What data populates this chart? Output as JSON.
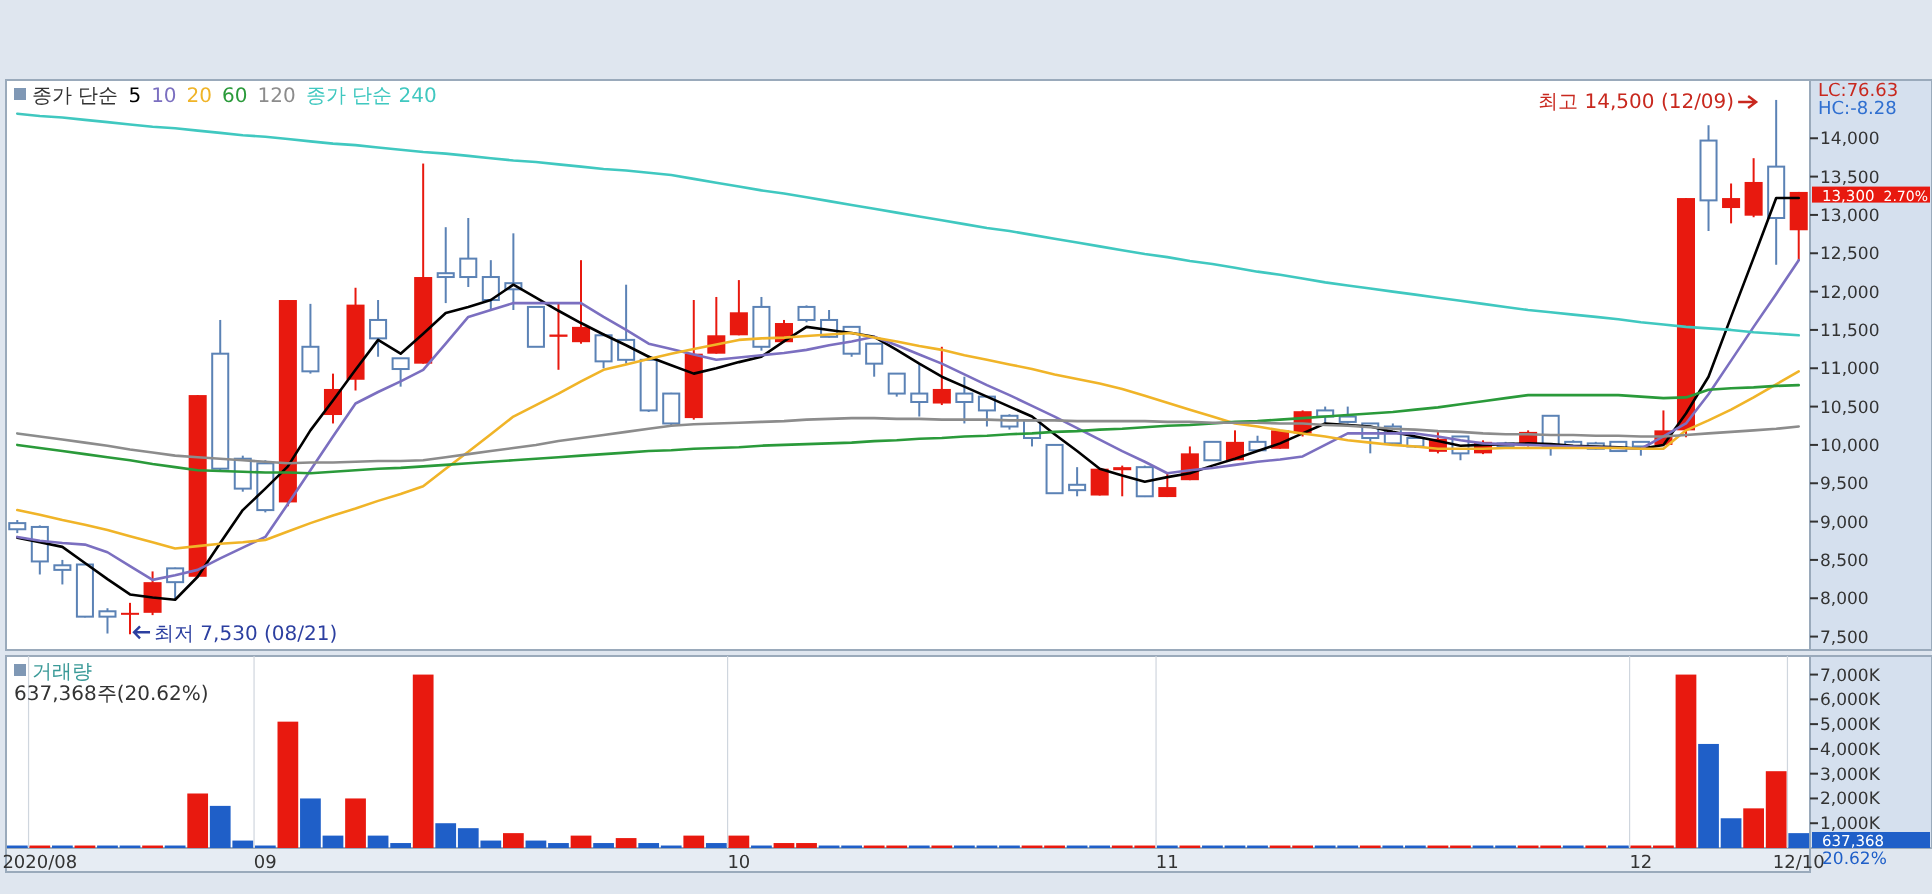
{
  "chart_data": [
    {
      "type": "candlestick",
      "tick_labels": "y",
      "legend": "top left",
      "legend_title": "종가 단순",
      "grid": false,
      "categories": [
        null,
        null,
        null,
        null,
        null,
        null,
        null,
        null,
        null,
        null,
        null,
        null,
        null,
        null,
        null,
        null,
        null,
        null,
        null,
        null,
        null,
        null,
        null,
        null,
        null,
        null,
        null,
        null,
        null,
        null,
        null,
        null,
        null,
        null,
        null,
        null,
        null,
        null,
        null,
        null,
        null,
        null,
        null,
        null,
        null,
        null,
        null,
        null,
        null,
        null,
        null,
        null,
        null,
        null,
        null,
        null,
        null,
        null,
        null,
        null,
        null,
        null,
        null,
        null,
        null,
        null,
        null,
        null,
        null,
        null,
        null,
        null,
        null,
        null,
        null,
        null,
        null,
        null,
        null,
        null
      ],
      "ohlc": [
        [
          8980,
          9020,
          8850,
          8900
        ],
        [
          8930,
          8950,
          8310,
          8480
        ],
        [
          8430,
          8500,
          8180,
          8370
        ],
        [
          8440,
          8450,
          7750,
          7760
        ],
        [
          7830,
          7870,
          7540,
          7760
        ],
        [
          7790,
          7940,
          7530,
          7810
        ],
        [
          7810,
          8350,
          7780,
          8210
        ],
        [
          8390,
          8400,
          7980,
          8210
        ],
        [
          8280,
          10650,
          8270,
          10650
        ],
        [
          11190,
          11630,
          9670,
          9690
        ],
        [
          9820,
          9860,
          9390,
          9430
        ],
        [
          9760,
          9800,
          9120,
          9150
        ],
        [
          9250,
          11890,
          9200,
          11890
        ],
        [
          11280,
          11840,
          10930,
          10960
        ],
        [
          10390,
          10930,
          10280,
          10730
        ],
        [
          10850,
          12050,
          10710,
          11830
        ],
        [
          11630,
          11890,
          11150,
          11390
        ],
        [
          11130,
          11130,
          10760,
          10990
        ],
        [
          11060,
          13670,
          11060,
          12190
        ],
        [
          12240,
          12840,
          11850,
          12190
        ],
        [
          12430,
          12960,
          12060,
          12190
        ],
        [
          12190,
          12410,
          11760,
          11890
        ],
        [
          12110,
          12760,
          11760,
          12030
        ],
        [
          11800,
          11800,
          11280,
          11280
        ],
        [
          11410,
          11840,
          10980,
          11440
        ],
        [
          11340,
          12410,
          11320,
          11540
        ],
        [
          11430,
          11460,
          11000,
          11090
        ],
        [
          11370,
          12090,
          11060,
          11110
        ],
        [
          11110,
          11170,
          10430,
          10450
        ],
        [
          10670,
          10680,
          10240,
          10280
        ],
        [
          10350,
          11890,
          10330,
          11190
        ],
        [
          11190,
          11930,
          11190,
          11430
        ],
        [
          11430,
          12150,
          11430,
          11730
        ],
        [
          11800,
          11930,
          11230,
          11280
        ],
        [
          11340,
          11630,
          11340,
          11590
        ],
        [
          11800,
          11820,
          11600,
          11630
        ],
        [
          11630,
          11760,
          11400,
          11410
        ],
        [
          11540,
          11540,
          11150,
          11190
        ],
        [
          11320,
          11320,
          10890,
          11060
        ],
        [
          10930,
          10930,
          10630,
          10670
        ],
        [
          10670,
          11060,
          10370,
          10560
        ],
        [
          10540,
          11280,
          10520,
          10730
        ],
        [
          10670,
          10890,
          10280,
          10560
        ],
        [
          10630,
          10630,
          10240,
          10450
        ],
        [
          10380,
          10400,
          10200,
          10240
        ],
        [
          10320,
          10320,
          9980,
          10090
        ],
        [
          10000,
          10000,
          9370,
          9370
        ],
        [
          9480,
          9710,
          9330,
          9410
        ],
        [
          9340,
          9690,
          9340,
          9690
        ],
        [
          9670,
          9730,
          9330,
          9710
        ],
        [
          9710,
          9730,
          9320,
          9330
        ],
        [
          9320,
          9630,
          9320,
          9450
        ],
        [
          9540,
          9980,
          9540,
          9890
        ],
        [
          10040,
          10040,
          9800,
          9800
        ],
        [
          9800,
          10190,
          9800,
          10040
        ],
        [
          10040,
          10120,
          9930,
          9930
        ],
        [
          9950,
          10190,
          9950,
          10190
        ],
        [
          10150,
          10450,
          10110,
          10440
        ],
        [
          10450,
          10500,
          10280,
          10370
        ],
        [
          10370,
          10500,
          10280,
          10300
        ],
        [
          10280,
          10280,
          9890,
          10090
        ],
        [
          10240,
          10280,
          10000,
          10020
        ],
        [
          10090,
          10100,
          9960,
          9980
        ],
        [
          9910,
          10190,
          9890,
          10080
        ],
        [
          10110,
          10110,
          9800,
          9890
        ],
        [
          9890,
          10060,
          9880,
          10040
        ],
        [
          10020,
          10040,
          9960,
          9980
        ],
        [
          9990,
          10190,
          9980,
          10170
        ],
        [
          10380,
          10380,
          9860,
          9980
        ],
        [
          10040,
          10060,
          9960,
          9980
        ],
        [
          10020,
          10040,
          9940,
          9950
        ],
        [
          10040,
          10040,
          9910,
          9920
        ],
        [
          10040,
          10040,
          9860,
          9980
        ],
        [
          10000,
          10450,
          9990,
          10190
        ],
        [
          10190,
          13220,
          10100,
          13220
        ],
        [
          13970,
          14170,
          12790,
          13190
        ],
        [
          13090,
          13410,
          12890,
          13220
        ],
        [
          12990,
          13740,
          12970,
          13430
        ],
        [
          13630,
          14500,
          12350,
          12960
        ],
        [
          12800,
          13300,
          12400,
          13300
        ]
      ],
      "colors": [
        "#5b82b5",
        "#5b82b5",
        "#5b82b5",
        "#5b82b5",
        "#5b82b5",
        "#e8190f",
        "#e8190f",
        "#5b82b5",
        "#e8190f",
        "#5b82b5",
        "#5b82b5",
        "#5b82b5",
        "#e8190f",
        "#5b82b5",
        "#e8190f",
        "#e8190f",
        "#5b82b5",
        "#5b82b5",
        "#e8190f",
        "#5b82b5",
        "#5b82b5",
        "#5b82b5",
        "#5b82b5",
        "#5b82b5",
        "#e8190f",
        "#e8190f",
        "#5b82b5",
        "#5b82b5",
        "#5b82b5",
        "#5b82b5",
        "#e8190f",
        "#e8190f",
        "#e8190f",
        "#5b82b5",
        "#e8190f",
        "#5b82b5",
        "#5b82b5",
        "#5b82b5",
        "#5b82b5",
        "#5b82b5",
        "#5b82b5",
        "#e8190f",
        "#5b82b5",
        "#5b82b5",
        "#5b82b5",
        "#5b82b5",
        "#5b82b5",
        "#5b82b5",
        "#e8190f",
        "#e8190f",
        "#5b82b5",
        "#e8190f",
        "#e8190f",
        "#5b82b5",
        "#e8190f",
        "#5b82b5",
        "#e8190f",
        "#e8190f",
        "#5b82b5",
        "#5b82b5",
        "#5b82b5",
        "#5b82b5",
        "#5b82b5",
        "#e8190f",
        "#5b82b5",
        "#e8190f",
        "#5b82b5",
        "#e8190f",
        "#5b82b5",
        "#5b82b5",
        "#5b82b5",
        "#5b82b5",
        "#5b82b5",
        "#e8190f",
        "#e8190f",
        "#5b82b5",
        "#e8190f",
        "#e8190f",
        "#5b82b5",
        "#e8190f"
      ],
      "series": [
        {
          "name": "5",
          "type": "line",
          "color": "#000000",
          "values": [
            8790,
            8730,
            8670,
            8460,
            8250,
            8050,
            8010,
            7980,
            8280,
            8720,
            9150,
            9430,
            9720,
            10190,
            10580,
            10980,
            11370,
            11190,
            11450,
            11720,
            11800,
            11890,
            12090,
            11920,
            11750,
            11590,
            11440,
            11300,
            11150,
            11040,
            10930,
            11000,
            11080,
            11150,
            11350,
            11540,
            11500,
            11460,
            11410,
            11240,
            11060,
            10890,
            10760,
            10630,
            10500,
            10370,
            10140,
            9920,
            9690,
            9600,
            9520,
            9580,
            9630,
            9730,
            9820,
            9920,
            10020,
            10150,
            10280,
            10260,
            10240,
            10170,
            10110,
            10050,
            9990,
            10000,
            10010,
            10020,
            10010,
            9990,
            9980,
            9970,
            9950,
            10000,
            10410,
            10890,
            11670,
            12440,
            13220,
            13220
          ]
        },
        {
          "name": "10",
          "type": "line",
          "color": "#7b6fc0",
          "values": [
            8800,
            8750,
            8720,
            8700,
            8600,
            8420,
            8240,
            8300,
            8370,
            8520,
            8660,
            8800,
            9230,
            9670,
            10110,
            10540,
            10690,
            10830,
            10980,
            11320,
            11670,
            11760,
            11850,
            11850,
            11850,
            11850,
            11670,
            11500,
            11320,
            11250,
            11180,
            11110,
            11140,
            11170,
            11200,
            11240,
            11300,
            11350,
            11410,
            11300,
            11180,
            11060,
            10920,
            10780,
            10650,
            10510,
            10370,
            10220,
            10070,
            9920,
            9780,
            9630,
            9670,
            9700,
            9740,
            9780,
            9810,
            9850,
            10000,
            10150,
            10150,
            10150,
            10150,
            10110,
            10060,
            10020,
            10010,
            10000,
            9990,
            9980,
            9970,
            9960,
            9950,
            10110,
            10280,
            10660,
            11100,
            11540,
            11970,
            12410
          ]
        },
        {
          "name": "20",
          "type": "line",
          "color": "#f0b428",
          "values": [
            9150,
            9090,
            9020,
            8960,
            8890,
            8810,
            8730,
            8650,
            8680,
            8710,
            8730,
            8760,
            8870,
            8980,
            9080,
            9170,
            9270,
            9360,
            9460,
            9690,
            9910,
            10140,
            10370,
            10520,
            10670,
            10830,
            10980,
            11050,
            11120,
            11190,
            11250,
            11310,
            11370,
            11390,
            11400,
            11420,
            11440,
            11460,
            11400,
            11350,
            11290,
            11240,
            11170,
            11110,
            11050,
            10990,
            10920,
            10860,
            10800,
            10730,
            10640,
            10550,
            10460,
            10370,
            10280,
            10240,
            10190,
            10150,
            10110,
            10060,
            10030,
            10000,
            9980,
            9950,
            9950,
            9950,
            9960,
            9960,
            9960,
            9960,
            9960,
            9960,
            9950,
            9950,
            10190,
            10320,
            10460,
            10620,
            10790,
            10960
          ]
        },
        {
          "name": "60",
          "type": "line",
          "color": "#2a9a3a",
          "values": [
            10000,
            9960,
            9920,
            9880,
            9840,
            9800,
            9750,
            9710,
            9670,
            9660,
            9650,
            9640,
            9640,
            9630,
            9650,
            9670,
            9690,
            9700,
            9720,
            9740,
            9760,
            9780,
            9800,
            9820,
            9840,
            9860,
            9880,
            9900,
            9920,
            9930,
            9950,
            9960,
            9970,
            9990,
            10000,
            10010,
            10020,
            10030,
            10050,
            10060,
            10080,
            10090,
            10110,
            10120,
            10140,
            10150,
            10170,
            10180,
            10200,
            10210,
            10230,
            10250,
            10260,
            10280,
            10300,
            10310,
            10330,
            10350,
            10370,
            10390,
            10410,
            10430,
            10460,
            10490,
            10530,
            10570,
            10610,
            10650,
            10650,
            10650,
            10650,
            10650,
            10630,
            10610,
            10620,
            10720,
            10740,
            10750,
            10770,
            10780
          ]
        },
        {
          "name": "120",
          "type": "line",
          "color": "#8c8c8c",
          "values": [
            10150,
            10110,
            10070,
            10030,
            9990,
            9940,
            9900,
            9860,
            9840,
            9820,
            9800,
            9780,
            9760,
            9770,
            9770,
            9780,
            9790,
            9790,
            9800,
            9840,
            9880,
            9920,
            9960,
            10000,
            10050,
            10090,
            10130,
            10170,
            10210,
            10250,
            10270,
            10280,
            10290,
            10300,
            10310,
            10330,
            10340,
            10350,
            10350,
            10340,
            10340,
            10330,
            10330,
            10330,
            10320,
            10320,
            10320,
            10310,
            10310,
            10310,
            10310,
            10300,
            10300,
            10290,
            10290,
            10290,
            10280,
            10280,
            10260,
            10250,
            10230,
            10210,
            10200,
            10180,
            10170,
            10150,
            10140,
            10140,
            10130,
            10130,
            10120,
            10120,
            10110,
            10110,
            10130,
            10150,
            10170,
            10190,
            10210,
            10240
          ]
        },
        {
          "name": "종가 단순 240",
          "type": "line",
          "color": "#40c8c0",
          "values": [
            14320,
            14290,
            14270,
            14240,
            14210,
            14180,
            14150,
            14130,
            14100,
            14070,
            14040,
            14020,
            13990,
            13960,
            13930,
            13910,
            13880,
            13850,
            13820,
            13800,
            13770,
            13740,
            13710,
            13690,
            13660,
            13630,
            13600,
            13580,
            13550,
            13520,
            13470,
            13420,
            13370,
            13320,
            13280,
            13230,
            13180,
            13130,
            13080,
            13030,
            12980,
            12930,
            12880,
            12830,
            12790,
            12740,
            12690,
            12640,
            12590,
            12540,
            12490,
            12450,
            12400,
            12360,
            12310,
            12260,
            12220,
            12170,
            12120,
            12080,
            12040,
            12000,
            11960,
            11920,
            11880,
            11840,
            11800,
            11760,
            11730,
            11700,
            11670,
            11640,
            11600,
            11570,
            11540,
            11520,
            11500,
            11470,
            11450,
            11430
          ]
        }
      ],
      "ylim": [
        7325,
        14760
      ],
      "yticks": [
        {
          "value": 7500,
          "label": "7,500"
        },
        {
          "value": 8000,
          "label": "8,000"
        },
        {
          "value": 8500,
          "label": "8,500"
        },
        {
          "value": 9000,
          "label": "9,000"
        },
        {
          "value": 9500,
          "label": "9,500"
        },
        {
          "value": 10000,
          "label": "10,000"
        },
        {
          "value": 10500,
          "label": "10,500"
        },
        {
          "value": 11000,
          "label": "11,000"
        },
        {
          "value": 11500,
          "label": "11,500"
        },
        {
          "value": 12000,
          "label": "12,000"
        },
        {
          "value": 12500,
          "label": "12,500"
        },
        {
          "value": 13000,
          "label": "13,000"
        },
        {
          "value": 13500,
          "label": "13,500"
        },
        {
          "value": 14000,
          "label": "14,000"
        }
      ],
      "annotations": [
        "최고 14,500 (12/09)",
        "최저 7,530 (08/21)",
        "13,300",
        "LC:76.63",
        "HC:-8.28",
        "2.70%"
      ]
    },
    {
      "type": "bar",
      "legend": "top left",
      "grid": false,
      "categories": [
        null,
        "2020/08",
        null,
        null,
        null,
        null,
        null,
        null,
        null,
        null,
        null,
        "09",
        null,
        null,
        null,
        null,
        null,
        null,
        null,
        null,
        null,
        null,
        null,
        null,
        null,
        null,
        null,
        null,
        null,
        null,
        null,
        null,
        "10",
        null,
        null,
        null,
        null,
        null,
        null,
        null,
        null,
        null,
        null,
        null,
        null,
        null,
        null,
        null,
        null,
        null,
        null,
        "11",
        null,
        null,
        null,
        null,
        null,
        null,
        null,
        null,
        null,
        null,
        null,
        null,
        null,
        null,
        null,
        null,
        null,
        null,
        null,
        null,
        "12",
        null,
        null,
        null,
        null,
        null,
        null,
        "12/10"
      ],
      "series": [
        {
          "name": "거래량",
          "values": [
            100,
            100,
            100,
            100,
            100,
            100,
            100,
            100,
            2200,
            1700,
            300,
            100,
            5100,
            2000,
            500,
            2000,
            500,
            200,
            7000,
            1000,
            800,
            300,
            600,
            300,
            200,
            500,
            200,
            400,
            200,
            100,
            500,
            200,
            500,
            100,
            200,
            200,
            100,
            100,
            100,
            100,
            100,
            100,
            100,
            100,
            100,
            100,
            100,
            100,
            100,
            100,
            100,
            100,
            100,
            100,
            100,
            100,
            100,
            100,
            100,
            100,
            100,
            100,
            100,
            100,
            100,
            100,
            100,
            100,
            100,
            100,
            100,
            100,
            100,
            100,
            7000,
            4200,
            1200,
            1600,
            3100,
            600
          ],
          "colors": [
            "#1f5fc8",
            "#e8190f",
            "#1f5fc8",
            "#e8190f",
            "#1f5fc8",
            "#1f5fc8",
            "#e8190f",
            "#1f5fc8",
            "#e8190f",
            "#1f5fc8",
            "#1f5fc8",
            "#1f5fc8",
            "#e8190f",
            "#1f5fc8",
            "#1f5fc8",
            "#e8190f",
            "#1f5fc8",
            "#1f5fc8",
            "#e8190f",
            "#1f5fc8",
            "#1f5fc8",
            "#1f5fc8",
            "#e8190f",
            "#1f5fc8",
            "#1f5fc8",
            "#e8190f",
            "#1f5fc8",
            "#e8190f",
            "#1f5fc8",
            "#1f5fc8",
            "#e8190f",
            "#1f5fc8",
            "#e8190f",
            "#1f5fc8",
            "#e8190f",
            "#e8190f",
            "#1f5fc8",
            "#1f5fc8",
            "#e8190f",
            "#e8190f",
            "#1f5fc8",
            "#e8190f",
            "#1f5fc8",
            "#1f5fc8",
            "#1f5fc8",
            "#e8190f",
            "#e8190f",
            "#1f5fc8",
            "#1f5fc8",
            "#e8190f",
            "#e8190f",
            "#1f5fc8",
            "#e8190f",
            "#1f5fc8",
            "#1f5fc8",
            "#1f5fc8",
            "#e8190f",
            "#e8190f",
            "#1f5fc8",
            "#1f5fc8",
            "#e8190f",
            "#1f5fc8",
            "#1f5fc8",
            "#e8190f",
            "#e8190f",
            "#1f5fc8",
            "#1f5fc8",
            "#e8190f",
            "#e8190f",
            "#1f5fc8",
            "#e8190f",
            "#1f5fc8",
            "#e8190f",
            "#e8190f",
            "#e8190f",
            "#1f5fc8",
            "#1f5fc8",
            "#e8190f",
            "#e8190f",
            "#1f5fc8"
          ]
        }
      ],
      "ylim": [
        0,
        7750
      ],
      "yticks": [
        {
          "value": 1000,
          "label": "1,000K"
        },
        {
          "value": 2000,
          "label": "2,000K"
        },
        {
          "value": 3000,
          "label": "3,000K"
        },
        {
          "value": 4000,
          "label": "4,000K"
        },
        {
          "value": 5000,
          "label": "5,000K"
        },
        {
          "value": 6000,
          "label": "6,000K"
        },
        {
          "value": 7000,
          "label": "7,000K"
        }
      ],
      "annotations": [
        "637,368주(20.62%)",
        "637,368",
        "20.62%"
      ]
    }
  ]
}
